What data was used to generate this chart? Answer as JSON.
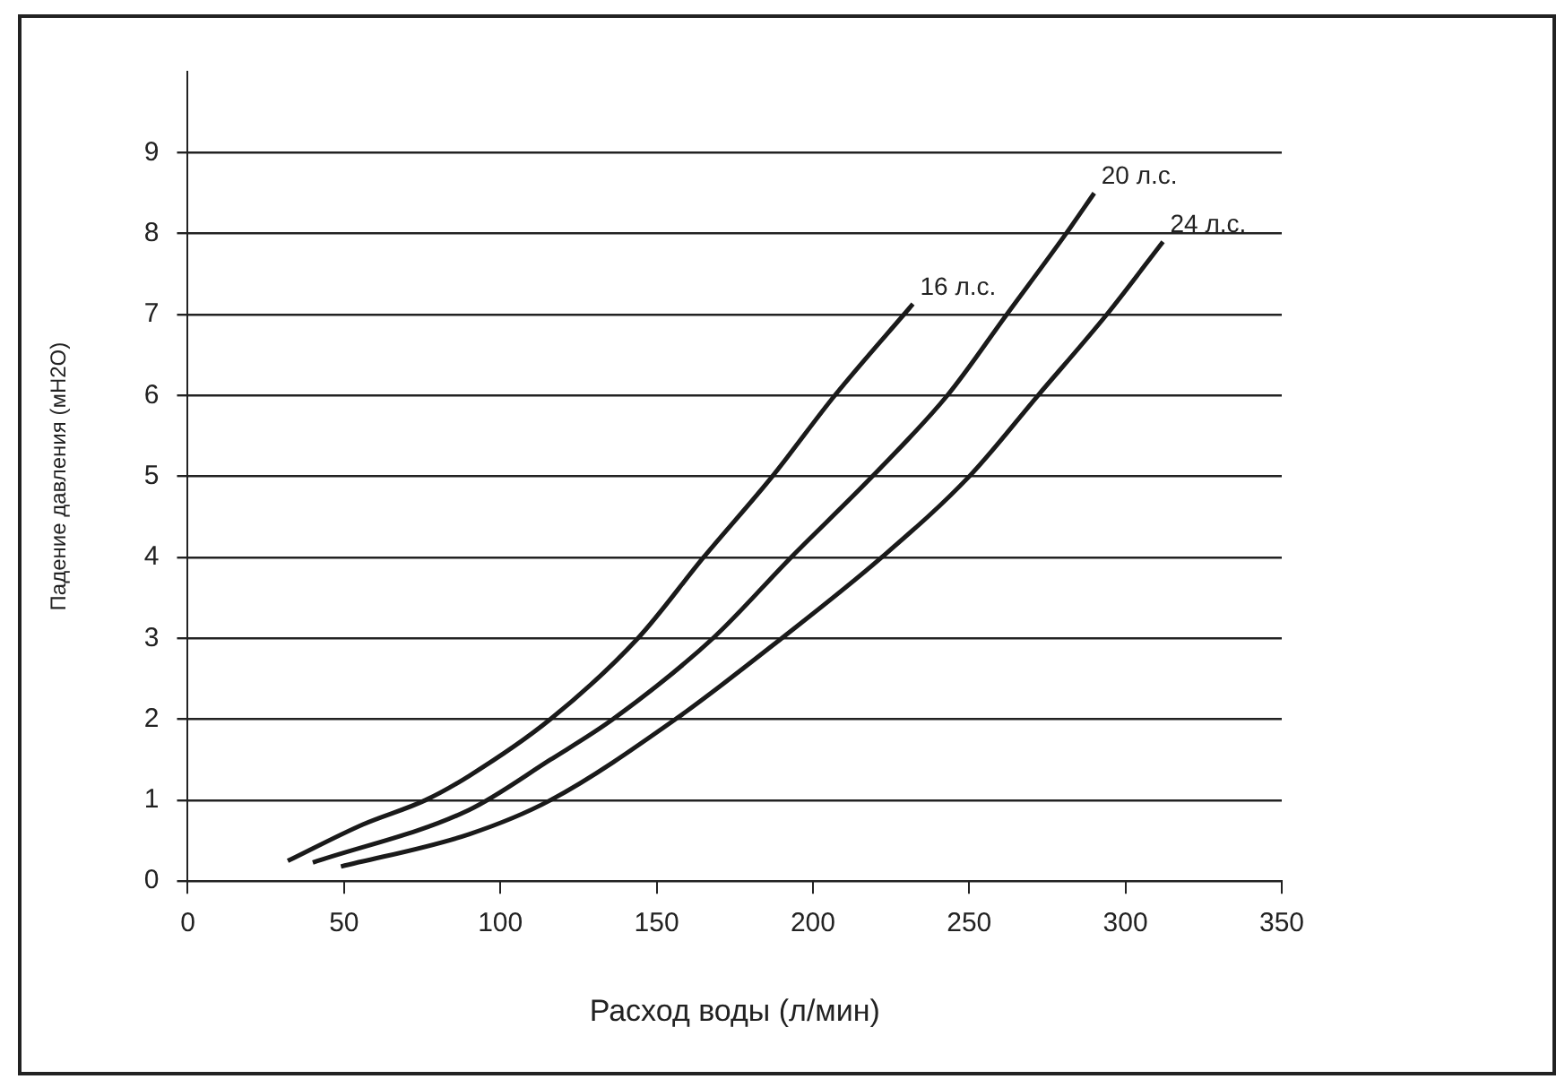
{
  "chart_data": {
    "type": "line",
    "xlabel": "Расход воды (л/мин)",
    "ylabel": "Падение давления (мН2О)",
    "xlim": [
      0,
      350
    ],
    "xticks": [
      0,
      50,
      100,
      150,
      200,
      250,
      300,
      350
    ],
    "ylim": [
      0,
      10
    ],
    "yticks": [
      0,
      1,
      2,
      3,
      4,
      5,
      6,
      7,
      8,
      9
    ],
    "grid": "y",
    "legend": false,
    "marker": "none",
    "line_style": "solid",
    "series": [
      {
        "name": "16 л.с.",
        "color": "#1a1a1a",
        "x": [
          32,
          56,
          76,
          90,
          116,
          144,
          165,
          187,
          207,
          232
        ],
        "values": [
          0.25,
          0.7,
          1.0,
          1.3,
          2.0,
          3.0,
          4.0,
          5.0,
          6.0,
          7.13
        ]
      },
      {
        "name": "20 л.с.",
        "color": "#1a1a1a",
        "x": [
          40,
          90,
          116,
          136,
          168,
          193,
          219,
          243,
          262,
          281,
          290
        ],
        "values": [
          0.23,
          0.88,
          1.5,
          2.0,
          3.0,
          4.0,
          5.0,
          6.0,
          7.0,
          8.0,
          8.5
        ]
      },
      {
        "name": "24 л.с.",
        "color": "#1a1a1a",
        "x": [
          49,
          90,
          116,
          156,
          190,
          222,
          250,
          272,
          294,
          312
        ],
        "values": [
          0.18,
          0.58,
          1.0,
          2.0,
          3.0,
          4.0,
          5.0,
          6.0,
          7.0,
          7.9
        ]
      }
    ]
  }
}
